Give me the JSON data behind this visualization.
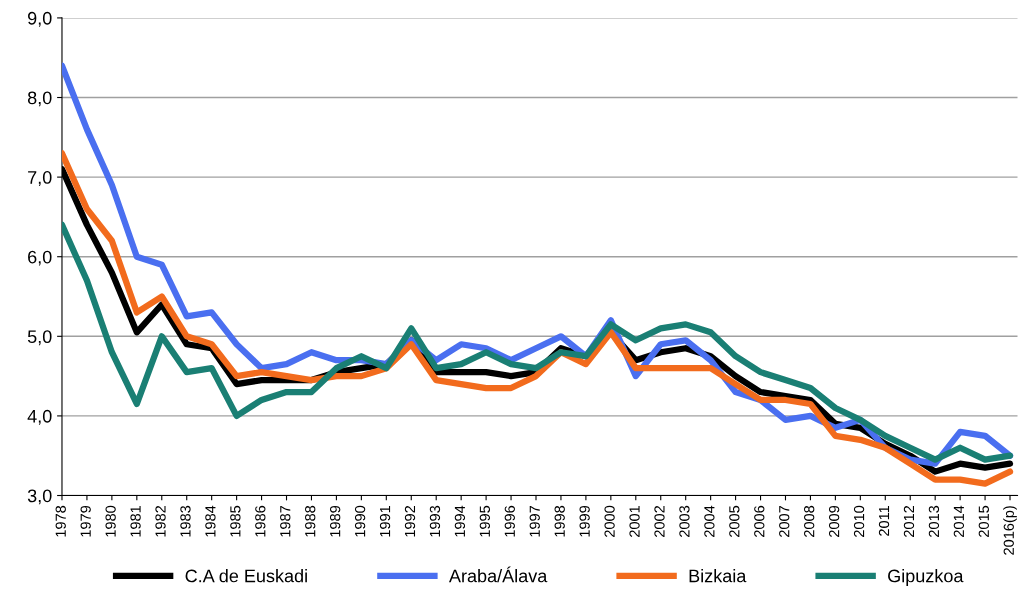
{
  "chart_data": {
    "type": "line",
    "categories": [
      "1978",
      "1979",
      "1980",
      "1981",
      "1982",
      "1983",
      "1984",
      "1985",
      "1986",
      "1987",
      "1988",
      "1989",
      "1990",
      "1991",
      "1992",
      "1993",
      "1994",
      "1995",
      "1996",
      "1997",
      "1998",
      "1999",
      "2000",
      "2001",
      "2002",
      "2003",
      "2004",
      "2005",
      "2006",
      "2007",
      "2008",
      "2009",
      "2010",
      "2011",
      "2012",
      "2013",
      "2014",
      "2015",
      "2016(p)"
    ],
    "series": [
      {
        "name": "C.A de Euskadi",
        "color": "#000000",
        "values": [
          7.1,
          6.4,
          5.8,
          5.05,
          5.4,
          4.9,
          4.85,
          4.4,
          4.45,
          4.45,
          4.45,
          4.55,
          4.6,
          4.65,
          4.95,
          4.55,
          4.55,
          4.55,
          4.5,
          4.55,
          4.85,
          4.75,
          5.05,
          4.7,
          4.8,
          4.85,
          4.75,
          4.5,
          4.3,
          4.25,
          4.2,
          3.9,
          3.85,
          3.65,
          3.5,
          3.3,
          3.4,
          3.35,
          3.4
        ]
      },
      {
        "name": "Araba/Álava",
        "color": "#4a6ff0",
        "values": [
          8.4,
          7.6,
          6.9,
          6.0,
          5.9,
          5.25,
          5.3,
          4.9,
          4.6,
          4.65,
          4.8,
          4.7,
          4.7,
          4.65,
          4.95,
          4.7,
          4.9,
          4.85,
          4.7,
          4.85,
          5.0,
          4.75,
          5.2,
          4.5,
          4.9,
          4.95,
          4.7,
          4.3,
          4.2,
          3.95,
          4.0,
          3.85,
          3.95,
          3.6,
          3.45,
          3.4,
          3.8,
          3.75,
          3.5
        ]
      },
      {
        "name": "Bizkaia",
        "color": "#f26b1d",
        "values": [
          7.3,
          6.6,
          6.2,
          5.3,
          5.5,
          5.0,
          4.9,
          4.5,
          4.55,
          4.5,
          4.45,
          4.5,
          4.5,
          4.6,
          4.9,
          4.45,
          4.4,
          4.35,
          4.35,
          4.5,
          4.8,
          4.65,
          5.05,
          4.6,
          4.6,
          4.6,
          4.6,
          4.4,
          4.2,
          4.2,
          4.15,
          3.75,
          3.7,
          3.6,
          3.4,
          3.2,
          3.2,
          3.15,
          3.3
        ]
      },
      {
        "name": "Gipuzkoa",
        "color": "#1a7f74",
        "values": [
          6.4,
          5.7,
          4.8,
          4.15,
          5.0,
          4.55,
          4.6,
          4.0,
          4.2,
          4.3,
          4.3,
          4.6,
          4.75,
          4.6,
          5.1,
          4.6,
          4.65,
          4.8,
          4.65,
          4.6,
          4.8,
          4.75,
          5.15,
          4.95,
          5.1,
          5.15,
          5.05,
          4.75,
          4.55,
          4.45,
          4.35,
          4.1,
          3.95,
          3.75,
          3.6,
          3.45,
          3.6,
          3.45,
          3.5
        ]
      }
    ],
    "ylim": [
      3,
      9
    ],
    "yticks": [
      {
        "value": 3,
        "label": "3,0"
      },
      {
        "value": 4,
        "label": "4,0"
      },
      {
        "value": 5,
        "label": "5,0"
      },
      {
        "value": 6,
        "label": "6,0"
      },
      {
        "value": 7,
        "label": "7,0"
      },
      {
        "value": 8,
        "label": "8,0"
      },
      {
        "value": 9,
        "label": "9,0"
      }
    ],
    "grid": "y",
    "legend": "bottom",
    "marker": "none",
    "line_style": "solid"
  }
}
